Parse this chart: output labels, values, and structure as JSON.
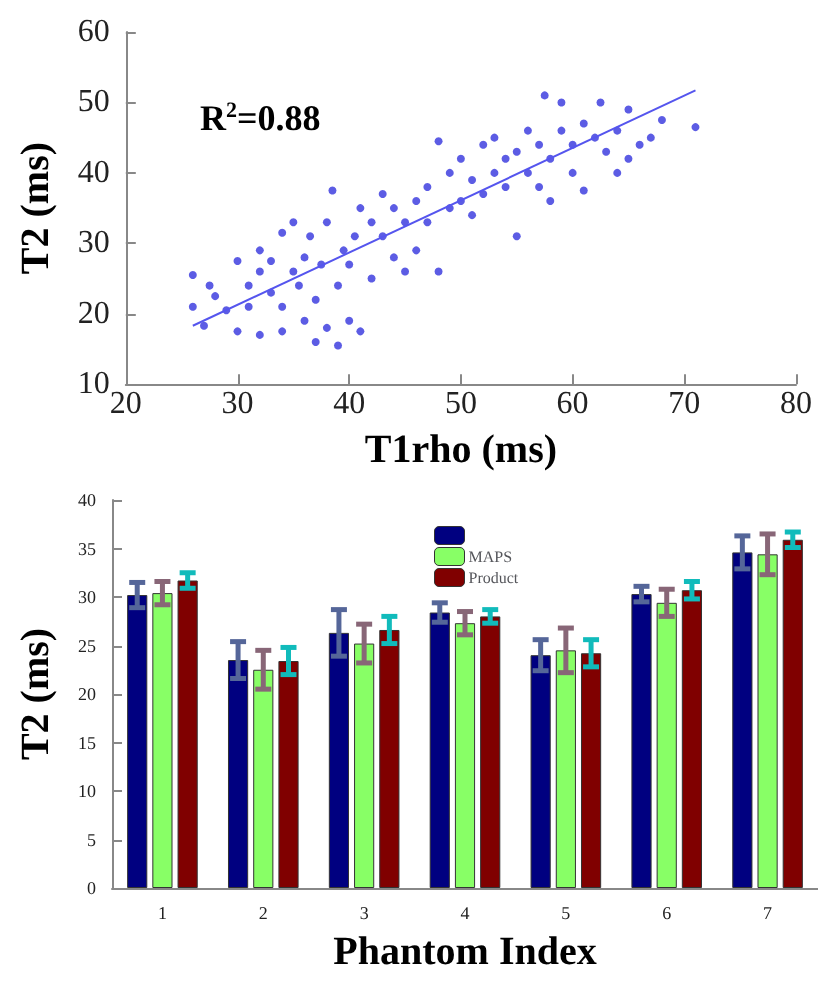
{
  "chart_data": [
    {
      "type": "scatter",
      "xlabel": "T1rho (ms)",
      "ylabel": "T2 (ms)",
      "xlim": [
        20,
        80
      ],
      "xticks": [
        20,
        30,
        40,
        50,
        60,
        70,
        80
      ],
      "ylim": [
        10,
        60
      ],
      "yticks": [
        10,
        20,
        30,
        40,
        50,
        60
      ],
      "grid": false,
      "marker": "circle",
      "annotations": [
        "R$^{2}$=0.88"
      ],
      "series": [
        {
          "color": "#3333dd",
          "x": [
            26,
            26,
            27,
            27.5,
            28,
            29,
            30,
            30,
            31,
            31,
            32,
            32,
            32,
            33,
            33,
            34,
            34,
            34,
            35,
            35,
            35.5,
            36,
            36,
            36.5,
            37,
            37,
            37.5,
            38,
            38,
            38.5,
            39,
            39,
            39.5,
            40,
            40,
            40.5,
            41,
            41,
            42,
            42,
            43,
            43,
            44,
            44,
            45,
            45,
            46,
            46,
            47,
            47,
            48,
            48,
            49,
            49,
            50,
            50,
            51,
            51,
            52,
            52,
            53,
            53,
            54,
            54,
            55,
            55,
            56,
            56,
            57,
            57,
            57.5,
            58,
            58,
            59,
            59,
            60,
            60,
            61,
            61,
            62,
            62.5,
            63,
            64,
            64,
            65,
            65,
            66,
            67,
            68,
            71
          ],
          "values": [
            25.5,
            21,
            18.3,
            24,
            22.5,
            20.5,
            27.5,
            17.5,
            24,
            21,
            29,
            26,
            17,
            23,
            27.5,
            31.5,
            21,
            17.5,
            26,
            33,
            24,
            28,
            19,
            31,
            22,
            16,
            27,
            18,
            33,
            37.5,
            24,
            15.5,
            29,
            27,
            19,
            31,
            17.5,
            35,
            33,
            25,
            31,
            37,
            28,
            35,
            33,
            26,
            36,
            29,
            38,
            33,
            44.5,
            26,
            40,
            35,
            36,
            42,
            39,
            34,
            44,
            37,
            40,
            45,
            38,
            42,
            43,
            31,
            40,
            46,
            44,
            38,
            51,
            42,
            36,
            46,
            50,
            44,
            40,
            47,
            37.5,
            45,
            50,
            43,
            46,
            40,
            49,
            42,
            44,
            45,
            47.5,
            46.5
          ]
        },
        {
          "type": "line",
          "color": "#5555ee",
          "marker": "none",
          "x": [
            26,
            71
          ],
          "values": [
            18.3,
            51.7
          ]
        }
      ]
    },
    {
      "type": "bar",
      "xlabel": "Phantom Index",
      "ylabel": "T2 (ms)",
      "categories": [
        "1",
        "2",
        "3",
        "4",
        "5",
        "6",
        "7"
      ],
      "ylim": [
        0,
        40
      ],
      "yticks": [
        0,
        5,
        10,
        15,
        20,
        25,
        30,
        35,
        40
      ],
      "grid": false,
      "legend": "top",
      "series": [
        {
          "color": "#000080",
          "values": [
            30.2,
            23.5,
            26.3,
            28.4,
            24.0,
            30.3,
            34.6
          ],
          "errors": [
            1.3,
            1.9,
            2.4,
            1.0,
            1.6,
            0.8,
            1.7
          ]
        },
        {
          "name": "MAPS",
          "color": "#88ff66",
          "values": [
            30.4,
            22.5,
            25.2,
            27.3,
            24.5,
            29.4,
            34.4
          ],
          "errors": [
            1.2,
            2.0,
            2.0,
            1.2,
            2.3,
            1.4,
            2.1
          ]
        },
        {
          "name": "Product",
          "color": "#800000",
          "values": [
            31.7,
            23.4,
            26.6,
            28.0,
            24.2,
            30.7,
            35.9
          ],
          "errors": [
            0.8,
            1.4,
            1.4,
            0.7,
            1.4,
            0.9,
            0.8
          ]
        }
      ]
    }
  ]
}
